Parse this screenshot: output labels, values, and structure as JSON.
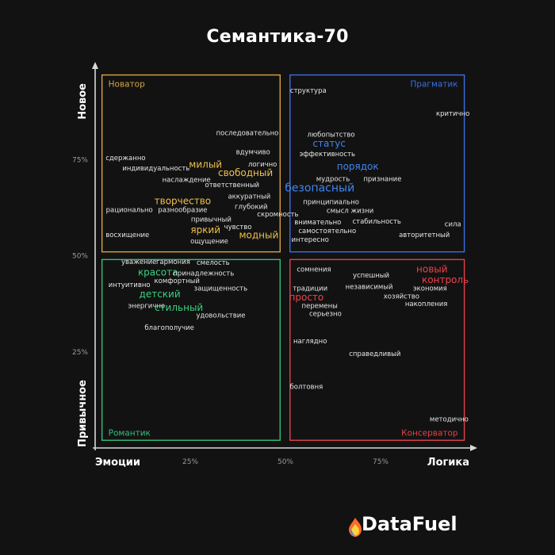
{
  "brand": {
    "name": "DataFuel"
  },
  "chart_data": {
    "type": "scatter",
    "title": "Семантика-70",
    "xlabel_left": "Эмоции",
    "xlabel_right": "Логика",
    "ylabel_top": "Новое",
    "ylabel_bottom": "Привычное",
    "xlim": [
      0,
      100
    ],
    "ylim": [
      0,
      100
    ],
    "x_ticks": [
      "25%",
      "50%",
      "75%"
    ],
    "y_ticks": [
      "25%",
      "50%",
      "75%"
    ],
    "quadrants": [
      {
        "name": "Новатор",
        "color": "#d9a441",
        "corner": "top-left"
      },
      {
        "name": "Прагматик",
        "color": "#3c6fe0",
        "corner": "top-right"
      },
      {
        "name": "Романтик",
        "color": "#33c07a",
        "corner": "bottom-left"
      },
      {
        "name": "Консерватор",
        "color": "#e0434a",
        "corner": "bottom-right"
      }
    ],
    "points": [
      {
        "label": "последовательно",
        "x": 40,
        "y": 82,
        "group": 0,
        "size": "s"
      },
      {
        "label": "вдумчиво",
        "x": 41.5,
        "y": 77,
        "group": 0,
        "size": "s"
      },
      {
        "label": "сдержанно",
        "x": 8,
        "y": 75.5,
        "group": 0,
        "size": "s"
      },
      {
        "label": "милый",
        "x": 29,
        "y": 73.5,
        "group": 0,
        "size": "m"
      },
      {
        "label": "логично",
        "x": 44,
        "y": 73.8,
        "group": 0,
        "size": "s"
      },
      {
        "label": "индивидуальность",
        "x": 16,
        "y": 72.8,
        "group": 0,
        "size": "s"
      },
      {
        "label": "свободный",
        "x": 39.5,
        "y": 71.3,
        "group": 0,
        "size": "m"
      },
      {
        "label": "наслаждение",
        "x": 24,
        "y": 69.8,
        "group": 0,
        "size": "s"
      },
      {
        "label": "ответственный",
        "x": 36,
        "y": 68.5,
        "group": 0,
        "size": "s"
      },
      {
        "label": "аккуратный",
        "x": 40.5,
        "y": 65.5,
        "group": 0,
        "size": "s"
      },
      {
        "label": "творчество",
        "x": 23,
        "y": 64,
        "group": 0,
        "size": "m"
      },
      {
        "label": "глубокий",
        "x": 41,
        "y": 62.8,
        "group": 0,
        "size": "s"
      },
      {
        "label": "рационально",
        "x": 9,
        "y": 62,
        "group": 0,
        "size": "s"
      },
      {
        "label": "разнообразие",
        "x": 23,
        "y": 62,
        "group": 0,
        "size": "s"
      },
      {
        "label": "скромность",
        "x": 48,
        "y": 60.8,
        "group": 0,
        "size": "s"
      },
      {
        "label": "привычный",
        "x": 30.5,
        "y": 59.5,
        "group": 0,
        "size": "s"
      },
      {
        "label": "чувство",
        "x": 37.5,
        "y": 57.5,
        "group": 0,
        "size": "s"
      },
      {
        "label": "яркий",
        "x": 29,
        "y": 56.5,
        "group": 0,
        "size": "m"
      },
      {
        "label": "модный",
        "x": 43,
        "y": 55.2,
        "group": 0,
        "size": "m"
      },
      {
        "label": "восхищение",
        "x": 8.5,
        "y": 55.5,
        "group": 0,
        "size": "s"
      },
      {
        "label": "ощущение",
        "x": 30,
        "y": 53.8,
        "group": 0,
        "size": "s"
      },
      {
        "label": "структура",
        "x": 56,
        "y": 93,
        "group": 1,
        "size": "s"
      },
      {
        "label": "критично",
        "x": 94,
        "y": 87,
        "group": 1,
        "size": "s"
      },
      {
        "label": "любопытство",
        "x": 62,
        "y": 81.5,
        "group": 1,
        "size": "s"
      },
      {
        "label": "статус",
        "x": 61.5,
        "y": 79,
        "group": 1,
        "size": "m"
      },
      {
        "label": "эффективность",
        "x": 61,
        "y": 76.5,
        "group": 1,
        "size": "s"
      },
      {
        "label": "порядок",
        "x": 69,
        "y": 73,
        "group": 1,
        "size": "m"
      },
      {
        "label": "мудрость",
        "x": 62.5,
        "y": 70,
        "group": 1,
        "size": "s"
      },
      {
        "label": "признание",
        "x": 75.5,
        "y": 70,
        "group": 1,
        "size": "s"
      },
      {
        "label": "безопасный",
        "x": 59,
        "y": 67.3,
        "group": 1,
        "size": "l"
      },
      {
        "label": "принципиально",
        "x": 62,
        "y": 64,
        "group": 1,
        "size": "s"
      },
      {
        "label": "смысл жизни",
        "x": 67,
        "y": 61.8,
        "group": 1,
        "size": "s"
      },
      {
        "label": "внимательно",
        "x": 58.5,
        "y": 58.8,
        "group": 1,
        "size": "s"
      },
      {
        "label": "стабильность",
        "x": 74,
        "y": 59,
        "group": 1,
        "size": "s"
      },
      {
        "label": "сила",
        "x": 94,
        "y": 58.2,
        "group": 1,
        "size": "s"
      },
      {
        "label": "самостоятельно",
        "x": 61,
        "y": 56.5,
        "group": 1,
        "size": "s"
      },
      {
        "label": "авторитетный",
        "x": 86.5,
        "y": 55.5,
        "group": 1,
        "size": "s"
      },
      {
        "label": "интересно",
        "x": 56.5,
        "y": 54.2,
        "group": 1,
        "size": "s"
      },
      {
        "label": "уважение",
        "x": 11.5,
        "y": 48.5,
        "group": 2,
        "size": "s"
      },
      {
        "label": "гармония",
        "x": 20.5,
        "y": 48.5,
        "group": 2,
        "size": "s"
      },
      {
        "label": "смелость",
        "x": 31,
        "y": 48.2,
        "group": 2,
        "size": "s"
      },
      {
        "label": "красота",
        "x": 16.5,
        "y": 45.5,
        "group": 2,
        "size": "m"
      },
      {
        "label": "принадлежность",
        "x": 28.5,
        "y": 45.5,
        "group": 2,
        "size": "s"
      },
      {
        "label": "комфортный",
        "x": 21.5,
        "y": 43.5,
        "group": 2,
        "size": "s"
      },
      {
        "label": "интуитивно",
        "x": 9,
        "y": 42.5,
        "group": 2,
        "size": "s"
      },
      {
        "label": "защищенность",
        "x": 33,
        "y": 41.5,
        "group": 2,
        "size": "s"
      },
      {
        "label": "детский",
        "x": 17,
        "y": 39.8,
        "group": 2,
        "size": "m"
      },
      {
        "label": "энергично",
        "x": 13.5,
        "y": 37,
        "group": 2,
        "size": "s"
      },
      {
        "label": "стильный",
        "x": 22,
        "y": 36.3,
        "group": 2,
        "size": "m"
      },
      {
        "label": "удовольствие",
        "x": 33,
        "y": 34.5,
        "group": 2,
        "size": "s"
      },
      {
        "label": "благополучие",
        "x": 19.5,
        "y": 31.3,
        "group": 2,
        "size": "s"
      },
      {
        "label": "сомнения",
        "x": 57.5,
        "y": 46.5,
        "group": 3,
        "size": "s"
      },
      {
        "label": "новый",
        "x": 88.5,
        "y": 46.3,
        "group": 3,
        "size": "m"
      },
      {
        "label": "успешный",
        "x": 72.5,
        "y": 45,
        "group": 3,
        "size": "s"
      },
      {
        "label": "контроль",
        "x": 92,
        "y": 43.5,
        "group": 3,
        "size": "m"
      },
      {
        "label": "независимый",
        "x": 72,
        "y": 42,
        "group": 3,
        "size": "s"
      },
      {
        "label": "традиции",
        "x": 56.5,
        "y": 41.5,
        "group": 3,
        "size": "s"
      },
      {
        "label": "экономия",
        "x": 88,
        "y": 41.5,
        "group": 3,
        "size": "s"
      },
      {
        "label": "просто",
        "x": 55.5,
        "y": 39,
        "group": 3,
        "size": "m"
      },
      {
        "label": "хозяйство",
        "x": 80.5,
        "y": 39.5,
        "group": 3,
        "size": "s"
      },
      {
        "label": "перемены",
        "x": 59,
        "y": 37,
        "group": 3,
        "size": "s"
      },
      {
        "label": "накопления",
        "x": 87,
        "y": 37.5,
        "group": 3,
        "size": "s"
      },
      {
        "label": "серьезно",
        "x": 60.5,
        "y": 35,
        "group": 3,
        "size": "s"
      },
      {
        "label": "наглядно",
        "x": 56.5,
        "y": 27.8,
        "group": 3,
        "size": "s"
      },
      {
        "label": "справедливый",
        "x": 73.5,
        "y": 24.5,
        "group": 3,
        "size": "s"
      },
      {
        "label": "болтовня",
        "x": 55.5,
        "y": 16,
        "group": 3,
        "size": "s"
      },
      {
        "label": "методично",
        "x": 93,
        "y": 7.5,
        "group": 3,
        "size": "s"
      }
    ]
  }
}
